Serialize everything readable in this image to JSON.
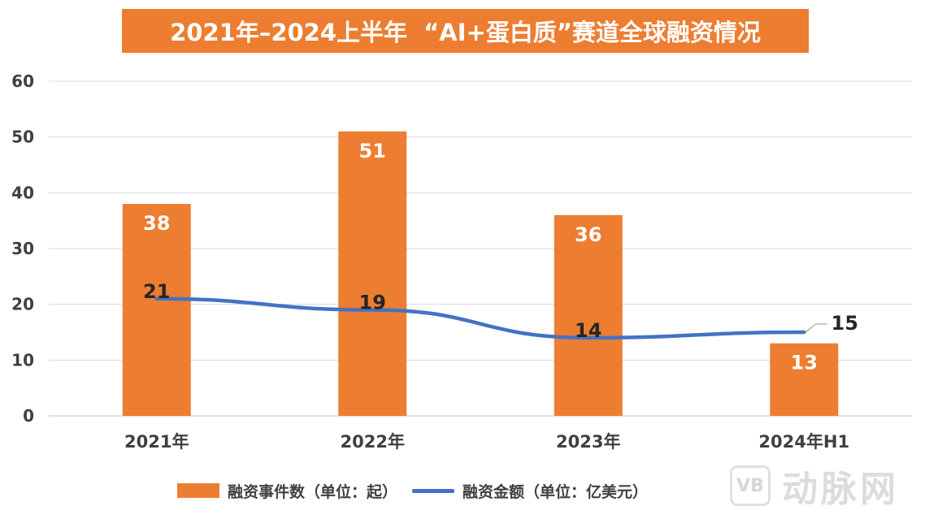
{
  "chart_data": {
    "type": "bar",
    "title": "2021年–2024上半年  “AI+蛋白质”赛道全球融资情况",
    "categories": [
      "2021年",
      "2022年",
      "2023年",
      "2024年H1"
    ],
    "series": [
      {
        "name": "融资事件数（单位：起）",
        "type": "bar",
        "color": "#ED7D31",
        "values": [
          38,
          51,
          36,
          13
        ]
      },
      {
        "name": "融资金额（单位：亿美元）",
        "type": "line",
        "color": "#4472C4",
        "values": [
          21,
          19,
          14,
          15
        ]
      }
    ],
    "ylim": [
      0,
      60
    ],
    "yticks": [
      0,
      10,
      20,
      30,
      40,
      50,
      60
    ],
    "grid": true,
    "legend_position": "bottom"
  },
  "watermark": {
    "icon": "vb-logo-icon",
    "icon_text": "VB",
    "text": "动脉网"
  }
}
